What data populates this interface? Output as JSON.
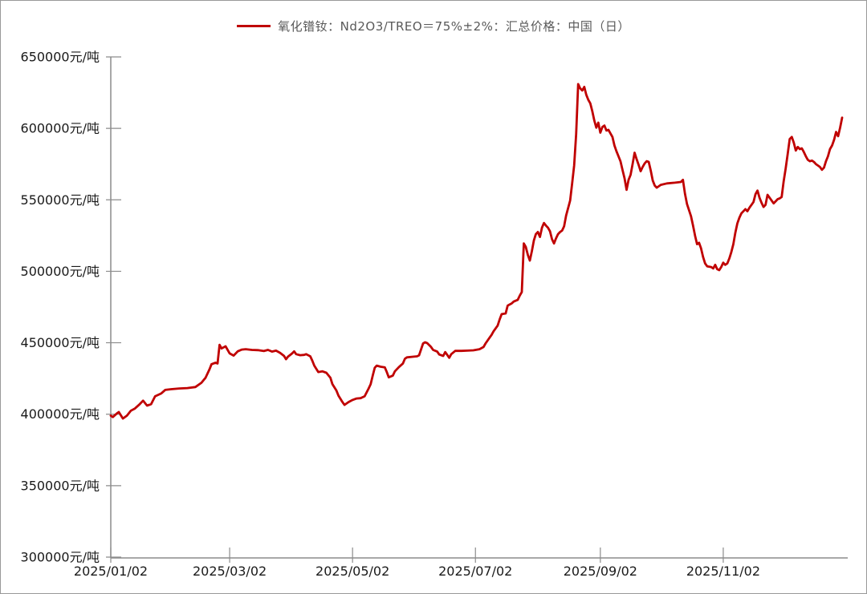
{
  "legend": {
    "label": "氧化镨钕：Nd2O3/TREO＝75%±2%：汇总价格：中国（日）",
    "line_color": "#C00000"
  },
  "colors": {
    "line": "#C00000",
    "axis": "#8c8c8c",
    "tick_label": "#1a1a1a",
    "frame_border": "#999999",
    "background": "#ffffff"
  },
  "chart_data": {
    "type": "line",
    "title": "",
    "xlabel": "",
    "ylabel": "",
    "grid": false,
    "legend_position": "top-center",
    "ylim": [
      300000,
      650000
    ],
    "xlim": [
      "2025/01/02",
      "2025/12/31"
    ],
    "y_tick_values": [
      650000,
      600000,
      550000,
      500000,
      450000,
      400000,
      350000,
      300000
    ],
    "y_tick_labels": [
      "650000元/吨",
      "600000元/吨",
      "550000元/吨",
      "500000元/吨",
      "450000元/吨",
      "400000元/吨",
      "350000元/吨",
      "300000元/吨"
    ],
    "x_tick_labels": [
      "2025/01/02",
      "2025/03/02",
      "2025/05/02",
      "2025/07/02",
      "2025/09/02",
      "2025/11/02"
    ],
    "series": [
      {
        "name": "氧化镨钕：Nd2O3/TREO＝75%±2%：汇总价格：中国（日）",
        "color": "#C00000",
        "unit": "元/吨",
        "points": [
          [
            "2025/01/02",
            399000
          ],
          [
            "2025/01/03",
            398000
          ],
          [
            "2025/01/05",
            400500
          ],
          [
            "2025/01/06",
            401500
          ],
          [
            "2025/01/08",
            397000
          ],
          [
            "2025/01/10",
            399000
          ],
          [
            "2025/01/12",
            402500
          ],
          [
            "2025/01/14",
            404000
          ],
          [
            "2025/01/16",
            406500
          ],
          [
            "2025/01/18",
            409500
          ],
          [
            "2025/01/20",
            406000
          ],
          [
            "2025/01/22",
            407000
          ],
          [
            "2025/01/24",
            412500
          ],
          [
            "2025/01/27",
            414500
          ],
          [
            "2025/01/29",
            417000
          ],
          [
            "2025/02/01",
            417500
          ],
          [
            "2025/02/05",
            418000
          ],
          [
            "2025/02/09",
            418300
          ],
          [
            "2025/02/13",
            419000
          ],
          [
            "2025/02/16",
            422000
          ],
          [
            "2025/02/18",
            425500
          ],
          [
            "2025/02/20",
            431500
          ],
          [
            "2025/02/21",
            435000
          ],
          [
            "2025/02/23",
            436000
          ],
          [
            "2025/02/24",
            435500
          ],
          [
            "2025/02/25",
            448500
          ],
          [
            "2025/02/26",
            446000
          ],
          [
            "2025/02/28",
            447500
          ],
          [
            "2025/03/02",
            442500
          ],
          [
            "2025/03/04",
            441000
          ],
          [
            "2025/03/06",
            444000
          ],
          [
            "2025/03/08",
            445200
          ],
          [
            "2025/03/10",
            445500
          ],
          [
            "2025/03/13",
            445000
          ],
          [
            "2025/03/16",
            444800
          ],
          [
            "2025/03/19",
            444200
          ],
          [
            "2025/03/21",
            445000
          ],
          [
            "2025/03/23",
            443800
          ],
          [
            "2025/03/25",
            444500
          ],
          [
            "2025/03/27",
            443000
          ],
          [
            "2025/03/29",
            440800
          ],
          [
            "2025/03/30",
            438500
          ],
          [
            "2025/03/31",
            440300
          ],
          [
            "2025/04/02",
            442500
          ],
          [
            "2025/04/03",
            444000
          ],
          [
            "2025/04/04",
            442000
          ],
          [
            "2025/04/06",
            441300
          ],
          [
            "2025/04/08",
            441500
          ],
          [
            "2025/04/09",
            442000
          ],
          [
            "2025/04/11",
            440500
          ],
          [
            "2025/04/12",
            437500
          ],
          [
            "2025/04/13",
            434000
          ],
          [
            "2025/04/15",
            429500
          ],
          [
            "2025/04/17",
            430000
          ],
          [
            "2025/04/19",
            429000
          ],
          [
            "2025/04/21",
            425500
          ],
          [
            "2025/04/22",
            421000
          ],
          [
            "2025/04/24",
            416500
          ],
          [
            "2025/04/25",
            413000
          ],
          [
            "2025/04/27",
            408500
          ],
          [
            "2025/04/28",
            406500
          ],
          [
            "2025/04/30",
            408500
          ],
          [
            "2025/05/02",
            410000
          ],
          [
            "2025/05/04",
            411000
          ],
          [
            "2025/05/06",
            411200
          ],
          [
            "2025/05/08",
            412500
          ],
          [
            "2025/05/10",
            418000
          ],
          [
            "2025/05/11",
            421000
          ],
          [
            "2025/05/12",
            427000
          ],
          [
            "2025/05/13",
            432500
          ],
          [
            "2025/05/14",
            434000
          ],
          [
            "2025/05/16",
            433200
          ],
          [
            "2025/05/18",
            432800
          ],
          [
            "2025/05/19",
            429500
          ],
          [
            "2025/05/20",
            425800
          ],
          [
            "2025/05/22",
            427000
          ],
          [
            "2025/05/23",
            430000
          ],
          [
            "2025/05/25",
            433000
          ],
          [
            "2025/05/27",
            435500
          ],
          [
            "2025/05/28",
            438800
          ],
          [
            "2025/05/29",
            439800
          ],
          [
            "2025/06/01",
            440200
          ],
          [
            "2025/06/03",
            440500
          ],
          [
            "2025/06/04",
            441200
          ],
          [
            "2025/06/06",
            449500
          ],
          [
            "2025/06/07",
            450300
          ],
          [
            "2025/06/08",
            449800
          ],
          [
            "2025/06/10",
            447000
          ],
          [
            "2025/06/11",
            445000
          ],
          [
            "2025/06/13",
            443800
          ],
          [
            "2025/06/14",
            441800
          ],
          [
            "2025/06/16",
            440800
          ],
          [
            "2025/06/17",
            443500
          ],
          [
            "2025/06/18",
            441500
          ],
          [
            "2025/06/19",
            439500
          ],
          [
            "2025/06/20",
            442000
          ],
          [
            "2025/06/22",
            444300
          ],
          [
            "2025/06/25",
            444300
          ],
          [
            "2025/06/28",
            444500
          ],
          [
            "2025/07/01",
            444700
          ],
          [
            "2025/07/04",
            445500
          ],
          [
            "2025/07/06",
            447000
          ],
          [
            "2025/07/07",
            449500
          ],
          [
            "2025/07/09",
            453500
          ],
          [
            "2025/07/10",
            455500
          ],
          [
            "2025/07/11",
            458000
          ],
          [
            "2025/07/13",
            462000
          ],
          [
            "2025/07/14",
            466300
          ],
          [
            "2025/07/15",
            470000
          ],
          [
            "2025/07/17",
            470500
          ],
          [
            "2025/07/18",
            476000
          ],
          [
            "2025/07/20",
            477500
          ],
          [
            "2025/07/21",
            478800
          ],
          [
            "2025/07/23",
            480000
          ],
          [
            "2025/07/24",
            483000
          ],
          [
            "2025/07/25",
            485500
          ],
          [
            "2025/07/26",
            519500
          ],
          [
            "2025/07/27",
            517000
          ],
          [
            "2025/07/28",
            511500
          ],
          [
            "2025/07/29",
            507500
          ],
          [
            "2025/07/30",
            514000
          ],
          [
            "2025/07/31",
            521500
          ],
          [
            "2025/08/01",
            526000
          ],
          [
            "2025/08/02",
            527500
          ],
          [
            "2025/08/03",
            524000
          ],
          [
            "2025/08/04",
            530500
          ],
          [
            "2025/08/05",
            533800
          ],
          [
            "2025/08/06",
            532000
          ],
          [
            "2025/08/07",
            530500
          ],
          [
            "2025/08/08",
            528000
          ],
          [
            "2025/08/09",
            522500
          ],
          [
            "2025/08/10",
            519500
          ],
          [
            "2025/08/11",
            523000
          ],
          [
            "2025/08/12",
            526000
          ],
          [
            "2025/08/13",
            527500
          ],
          [
            "2025/08/14",
            528500
          ],
          [
            "2025/08/15",
            531500
          ],
          [
            "2025/08/16",
            539000
          ],
          [
            "2025/08/18",
            549500
          ],
          [
            "2025/08/19",
            561500
          ],
          [
            "2025/08/20",
            574000
          ],
          [
            "2025/08/21",
            596000
          ],
          [
            "2025/08/22",
            631000
          ],
          [
            "2025/08/23",
            628000
          ],
          [
            "2025/08/24",
            626500
          ],
          [
            "2025/08/25",
            629000
          ],
          [
            "2025/08/26",
            623500
          ],
          [
            "2025/08/27",
            620000
          ],
          [
            "2025/08/28",
            617500
          ],
          [
            "2025/08/29",
            612000
          ],
          [
            "2025/08/30",
            605500
          ],
          [
            "2025/08/31",
            600500
          ],
          [
            "2025/09/01",
            604000
          ],
          [
            "2025/09/02",
            597000
          ],
          [
            "2025/09/03",
            601000
          ],
          [
            "2025/09/04",
            602000
          ],
          [
            "2025/09/05",
            598500
          ],
          [
            "2025/09/06",
            599000
          ],
          [
            "2025/09/07",
            596500
          ],
          [
            "2025/09/08",
            594000
          ],
          [
            "2025/09/09",
            588000
          ],
          [
            "2025/09/10",
            584000
          ],
          [
            "2025/09/11",
            580500
          ],
          [
            "2025/09/12",
            577000
          ],
          [
            "2025/09/13",
            571000
          ],
          [
            "2025/09/14",
            565000
          ],
          [
            "2025/09/15",
            557000
          ],
          [
            "2025/09/16",
            564000
          ],
          [
            "2025/09/17",
            567500
          ],
          [
            "2025/09/18",
            575000
          ],
          [
            "2025/09/19",
            583000
          ],
          [
            "2025/09/20",
            578500
          ],
          [
            "2025/09/21",
            574500
          ],
          [
            "2025/09/22",
            570000
          ],
          [
            "2025/09/23",
            573000
          ],
          [
            "2025/09/24",
            575500
          ],
          [
            "2025/09/25",
            577000
          ],
          [
            "2025/09/26",
            576500
          ],
          [
            "2025/09/27",
            570500
          ],
          [
            "2025/09/28",
            563500
          ],
          [
            "2025/09/29",
            560000
          ],
          [
            "2025/09/30",
            558500
          ],
          [
            "2025/10/02",
            560500
          ],
          [
            "2025/10/05",
            561500
          ],
          [
            "2025/10/09",
            562000
          ],
          [
            "2025/10/12",
            562500
          ],
          [
            "2025/10/13",
            564000
          ],
          [
            "2025/10/14",
            554500
          ],
          [
            "2025/10/15",
            547000
          ],
          [
            "2025/10/17",
            538500
          ],
          [
            "2025/10/18",
            532000
          ],
          [
            "2025/10/19",
            525000
          ],
          [
            "2025/10/20",
            519000
          ],
          [
            "2025/10/21",
            520000
          ],
          [
            "2025/10/22",
            516000
          ],
          [
            "2025/10/23",
            510000
          ],
          [
            "2025/10/24",
            505500
          ],
          [
            "2025/10/25",
            503500
          ],
          [
            "2025/10/27",
            503000
          ],
          [
            "2025/10/28",
            502000
          ],
          [
            "2025/10/29",
            504500
          ],
          [
            "2025/10/30",
            501500
          ],
          [
            "2025/10/31",
            500800
          ],
          [
            "2025/11/01",
            503000
          ],
          [
            "2025/11/02",
            506000
          ],
          [
            "2025/11/03",
            504500
          ],
          [
            "2025/11/04",
            505500
          ],
          [
            "2025/11/05",
            509000
          ],
          [
            "2025/11/06",
            513500
          ],
          [
            "2025/11/07",
            519000
          ],
          [
            "2025/11/08",
            527000
          ],
          [
            "2025/11/09",
            533500
          ],
          [
            "2025/11/10",
            537500
          ],
          [
            "2025/11/11",
            540500
          ],
          [
            "2025/11/13",
            543500
          ],
          [
            "2025/11/14",
            542000
          ],
          [
            "2025/11/15",
            544500
          ],
          [
            "2025/11/17",
            548500
          ],
          [
            "2025/11/18",
            554000
          ],
          [
            "2025/11/19",
            556500
          ],
          [
            "2025/11/20",
            551500
          ],
          [
            "2025/11/21",
            548000
          ],
          [
            "2025/11/22",
            545000
          ],
          [
            "2025/11/23",
            546500
          ],
          [
            "2025/11/24",
            553500
          ],
          [
            "2025/11/26",
            549500
          ],
          [
            "2025/11/27",
            547500
          ],
          [
            "2025/11/28",
            549000
          ],
          [
            "2025/11/29",
            550500
          ],
          [
            "2025/11/30",
            551000
          ],
          [
            "2025/12/01",
            552000
          ],
          [
            "2025/12/02",
            563000
          ],
          [
            "2025/12/03",
            572000
          ],
          [
            "2025/12/04",
            582000
          ],
          [
            "2025/12/05",
            592500
          ],
          [
            "2025/12/06",
            594000
          ],
          [
            "2025/12/07",
            590000
          ],
          [
            "2025/12/08",
            584500
          ],
          [
            "2025/12/09",
            587000
          ],
          [
            "2025/12/10",
            585500
          ],
          [
            "2025/12/11",
            586000
          ],
          [
            "2025/12/12",
            583500
          ],
          [
            "2025/12/13",
            580500
          ],
          [
            "2025/12/14",
            578000
          ],
          [
            "2025/12/15",
            577000
          ],
          [
            "2025/12/16",
            577500
          ],
          [
            "2025/12/17",
            576500
          ],
          [
            "2025/12/18",
            575000
          ],
          [
            "2025/12/19",
            574000
          ],
          [
            "2025/12/20",
            573000
          ],
          [
            "2025/12/21",
            571000
          ],
          [
            "2025/12/22",
            572500
          ],
          [
            "2025/12/23",
            577000
          ],
          [
            "2025/12/24",
            580500
          ],
          [
            "2025/12/25",
            585500
          ],
          [
            "2025/12/26",
            588000
          ],
          [
            "2025/12/27",
            592000
          ],
          [
            "2025/12/28",
            597500
          ],
          [
            "2025/12/29",
            594500
          ],
          [
            "2025/12/30",
            600500
          ],
          [
            "2025/12/31",
            607500
          ]
        ]
      }
    ]
  }
}
